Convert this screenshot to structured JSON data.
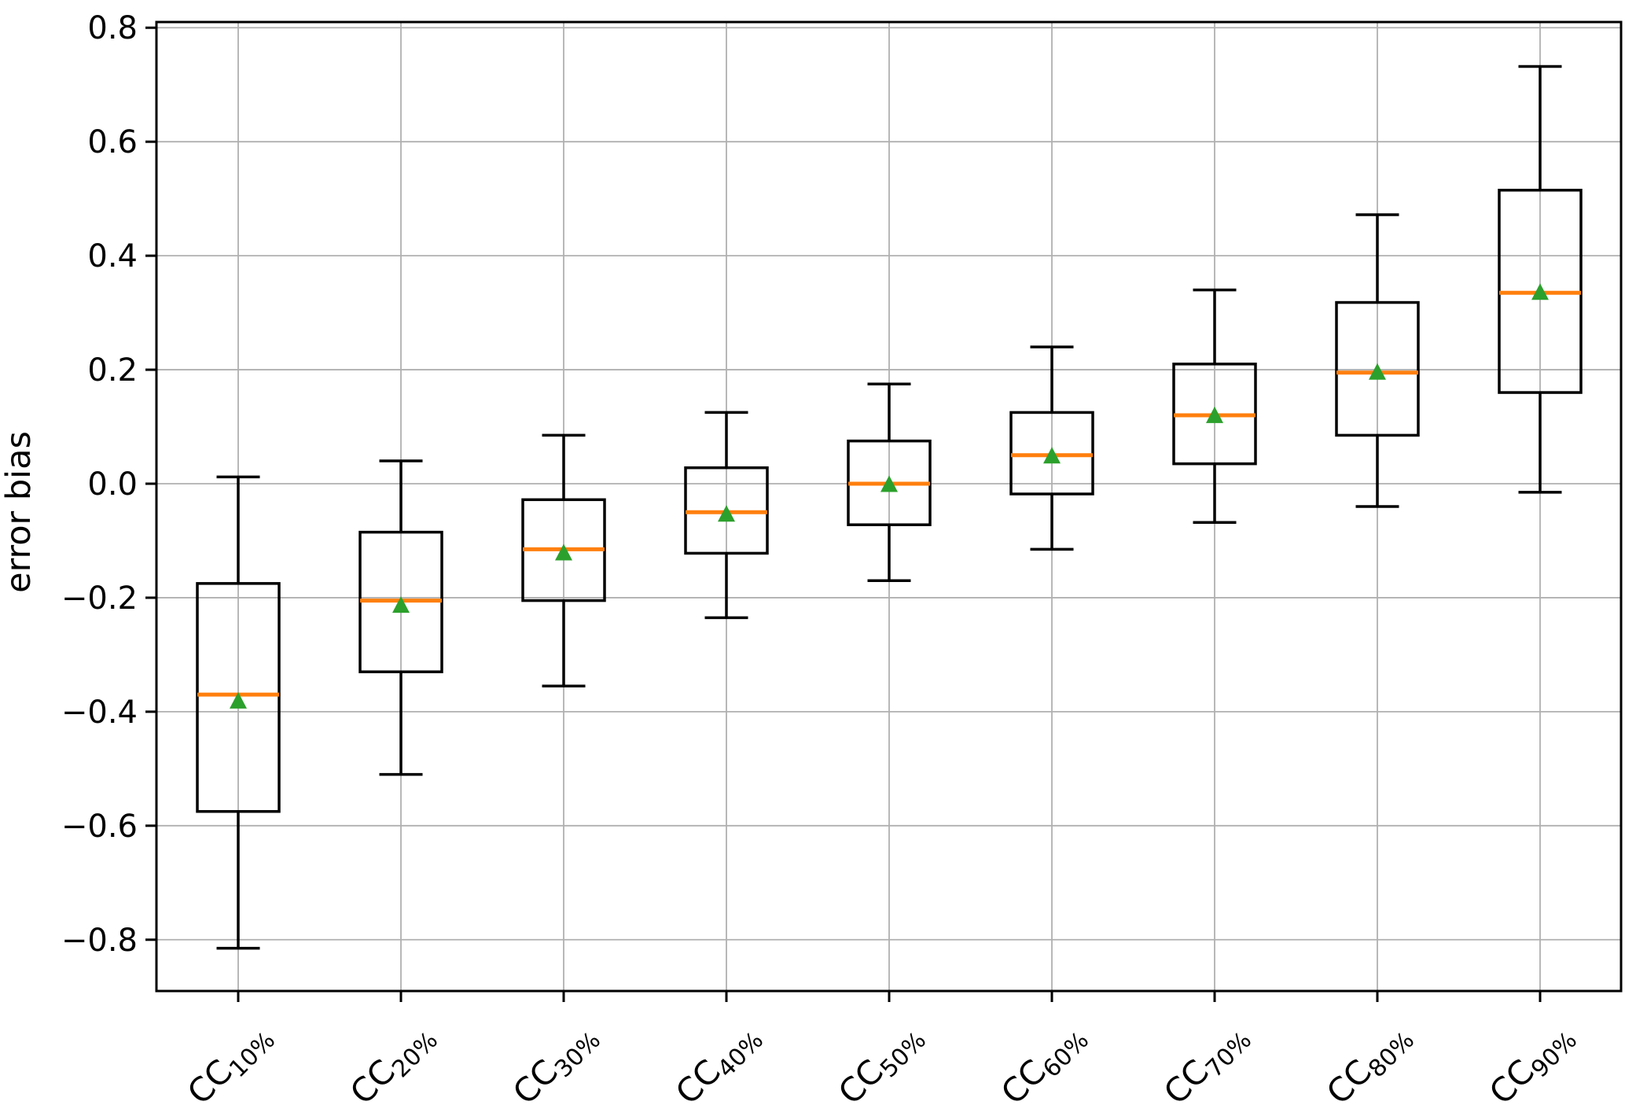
{
  "chart_data": {
    "type": "box",
    "title": "",
    "xlabel": "",
    "ylabel": "error bias",
    "categories": [
      "CC10%",
      "CC20%",
      "CC30%",
      "CC40%",
      "CC50%",
      "CC60%",
      "CC70%",
      "CC80%",
      "CC90%"
    ],
    "category_parts": [
      {
        "base": "CC",
        "sub": "10%"
      },
      {
        "base": "CC",
        "sub": "20%"
      },
      {
        "base": "CC",
        "sub": "30%"
      },
      {
        "base": "CC",
        "sub": "40%"
      },
      {
        "base": "CC",
        "sub": "50%"
      },
      {
        "base": "CC",
        "sub": "60%"
      },
      {
        "base": "CC",
        "sub": "70%"
      },
      {
        "base": "CC",
        "sub": "80%"
      },
      {
        "base": "CC",
        "sub": "90%"
      }
    ],
    "boxes": [
      {
        "label": "CC10%",
        "whislo": -0.815,
        "q1": -0.575,
        "med": -0.37,
        "q3": -0.175,
        "whishi": 0.012,
        "mean": -0.38
      },
      {
        "label": "CC20%",
        "whislo": -0.51,
        "q1": -0.33,
        "med": -0.205,
        "q3": -0.085,
        "whishi": 0.04,
        "mean": -0.212
      },
      {
        "label": "CC30%",
        "whislo": -0.355,
        "q1": -0.205,
        "med": -0.115,
        "q3": -0.028,
        "whishi": 0.085,
        "mean": -0.12
      },
      {
        "label": "CC40%",
        "whislo": -0.235,
        "q1": -0.122,
        "med": -0.05,
        "q3": 0.028,
        "whishi": 0.125,
        "mean": -0.052
      },
      {
        "label": "CC50%",
        "whislo": -0.17,
        "q1": -0.072,
        "med": 0.0,
        "q3": 0.075,
        "whishi": 0.175,
        "mean": 0.0
      },
      {
        "label": "CC60%",
        "whislo": -0.115,
        "q1": -0.018,
        "med": 0.05,
        "q3": 0.125,
        "whishi": 0.24,
        "mean": 0.05
      },
      {
        "label": "CC70%",
        "whislo": -0.068,
        "q1": 0.035,
        "med": 0.12,
        "q3": 0.21,
        "whishi": 0.34,
        "mean": 0.121
      },
      {
        "label": "CC80%",
        "whislo": -0.04,
        "q1": 0.085,
        "med": 0.195,
        "q3": 0.318,
        "whishi": 0.472,
        "mean": 0.197
      },
      {
        "label": "CC90%",
        "whislo": -0.015,
        "q1": 0.16,
        "med": 0.335,
        "q3": 0.515,
        "whishi": 0.732,
        "mean": 0.337
      }
    ],
    "yticks": [
      0.8,
      0.6,
      0.4,
      0.2,
      0.0,
      -0.2,
      -0.4,
      -0.6,
      -0.8
    ],
    "ytick_labels": [
      "0.8",
      "0.6",
      "0.4",
      "0.2",
      "0.0",
      "−0.2",
      "−0.4",
      "−0.6",
      "−0.8"
    ],
    "ylim": [
      -0.89,
      0.81
    ],
    "grid": true,
    "legend": null,
    "colors": {
      "box": "#000000",
      "whisker": "#000000",
      "median": "#ff7f0e",
      "mean": "#2ca02c",
      "grid": "#b0b0b0",
      "axis": "#000000",
      "text": "#000000",
      "background": "#ffffff"
    }
  }
}
